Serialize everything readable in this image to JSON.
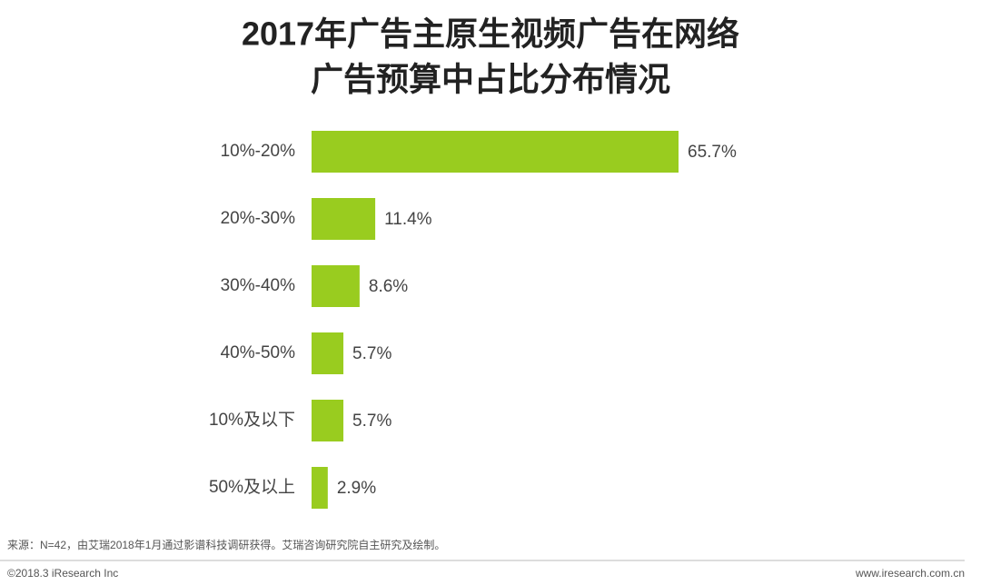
{
  "chart_data": {
    "type": "bar",
    "orientation": "horizontal",
    "title": [
      "2017年广告主原生视频广告在网络",
      "广告预算中占比分布情况"
    ],
    "categories": [
      "10%-20%",
      "20%-30%",
      "30%-40%",
      "40%-50%",
      "10%及以下",
      "50%及以上"
    ],
    "values": [
      65.7,
      11.4,
      8.6,
      5.7,
      5.7,
      2.9
    ],
    "value_labels": [
      "65.7%",
      "11.4%",
      "8.6%",
      "5.7%",
      "5.7%",
      "2.9%"
    ],
    "color": "#99cc1f"
  },
  "source": "来源：N=42，由艾瑞2018年1月通过影谱科技调研获得。艾瑞咨询研究院自主研究及绘制。",
  "footer": {
    "copyright": "©2018.3 iResearch Inc",
    "website": "www.iresearch.com.cn"
  }
}
